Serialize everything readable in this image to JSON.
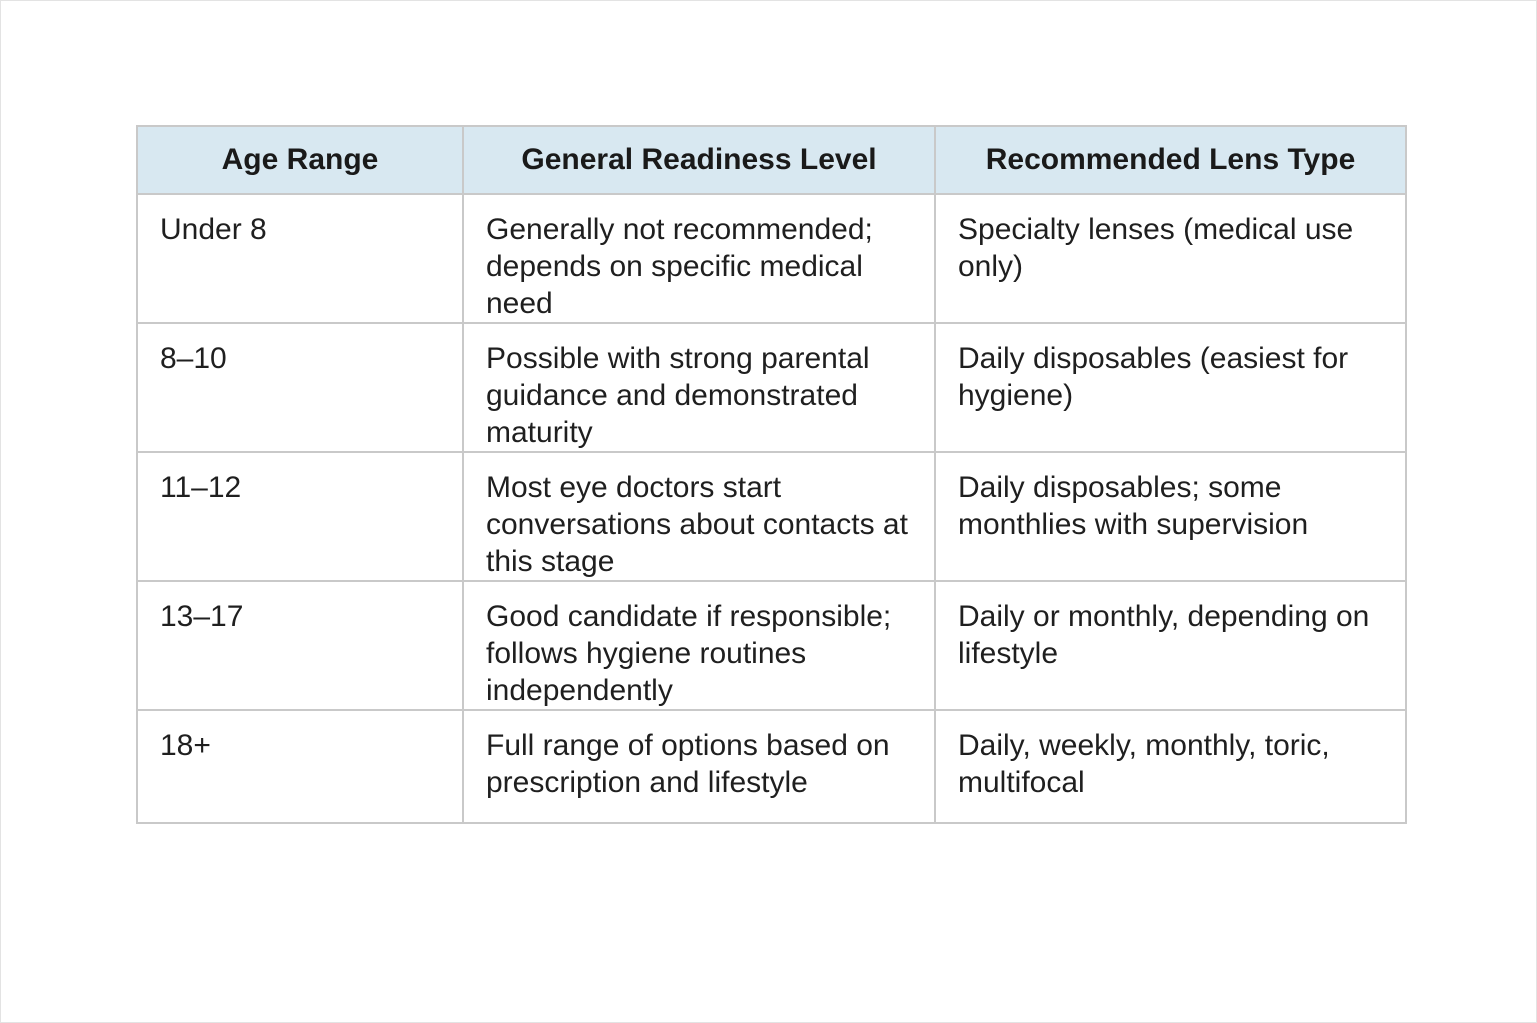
{
  "table": {
    "headers": [
      "Age Range",
      "General Readiness Level",
      "Recommended Lens Type"
    ],
    "rows": [
      {
        "age_range": "Under 8",
        "readiness": "Generally not recommended; depends on specific medical need",
        "lens_type": "Specialty lenses (medical use only)"
      },
      {
        "age_range": "8–10",
        "readiness": "Possible with strong parental guidance and demonstrated maturity",
        "lens_type": "Daily disposables (easiest for hygiene)"
      },
      {
        "age_range": "11–12",
        "readiness": "Most eye doctors start conversations about contacts at this stage",
        "lens_type": "Daily disposables; some monthlies with supervision"
      },
      {
        "age_range": "13–17",
        "readiness": "Good candidate if responsible; follows hygiene routines independently",
        "lens_type": "Daily or monthly, depending on lifestyle"
      },
      {
        "age_range": "18+",
        "readiness": "Full range of options based on prescription and lifestyle",
        "lens_type": "Daily, weekly, monthly, toric, multifocal"
      }
    ]
  }
}
